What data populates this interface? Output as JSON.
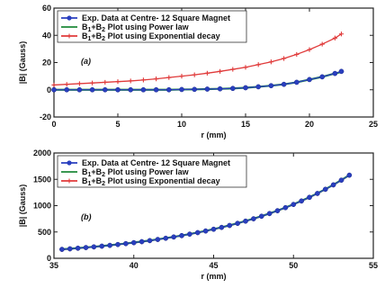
{
  "chart_data": [
    {
      "type": "line",
      "panel_label": "(a)",
      "xlabel": "r (mm)",
      "ylabel": "|B| (Gauss)",
      "xlim": [
        0,
        25
      ],
      "ylim": [
        -20,
        60
      ],
      "xticks": [
        "0",
        "5",
        "10",
        "15",
        "20",
        "25"
      ],
      "yticks": [
        "-20",
        "0",
        "20",
        "40",
        "60"
      ],
      "grid": false,
      "legend_position": "top-left",
      "x": [
        0,
        1,
        2,
        3,
        4,
        5,
        6,
        7,
        8,
        9,
        10,
        11,
        12,
        13,
        14,
        15,
        16,
        17,
        18,
        19,
        20,
        21,
        22,
        22.5
      ],
      "series": [
        {
          "name": "Exp. Data at Centre- 12 Square Magnet",
          "color": "#2a3fbf",
          "marker": "circle",
          "values": [
            0,
            0,
            0,
            0,
            0,
            0,
            0,
            0,
            0,
            0,
            0.2,
            0.3,
            0.5,
            0.7,
            1,
            1.5,
            2.2,
            3,
            4,
            5.5,
            7.5,
            9.5,
            12,
            13.5
          ]
        },
        {
          "name": "B1+B2 Plot using Power law",
          "color": "#1e8a3a",
          "marker": "line",
          "values": [
            0,
            0,
            0,
            0,
            0,
            0,
            0,
            0,
            0,
            0,
            0.2,
            0.3,
            0.5,
            0.7,
            1,
            1.5,
            2.2,
            3,
            4,
            5.5,
            7.5,
            9.5,
            12,
            13
          ]
        },
        {
          "name": "B1+B2 Plot using Exponential decay",
          "color": "#e03a3a",
          "marker": "plus",
          "values": [
            3.5,
            4,
            4.5,
            5,
            5.5,
            6,
            6.5,
            7.2,
            8,
            9,
            10,
            11,
            12.2,
            13.5,
            15,
            16.5,
            18.5,
            20.5,
            23,
            26,
            29.5,
            33.5,
            38,
            41
          ]
        }
      ]
    },
    {
      "type": "line",
      "panel_label": "(b)",
      "xlabel": "r (mm)",
      "ylabel": "|B| (Gauss)",
      "xlim": [
        35,
        55
      ],
      "ylim": [
        0,
        2000
      ],
      "xticks": [
        "35",
        "40",
        "45",
        "50",
        "55"
      ],
      "yticks": [
        "0",
        "500",
        "1000",
        "1500",
        "2000"
      ],
      "grid": false,
      "legend_position": "top-left",
      "x": [
        35.5,
        36,
        36.5,
        37,
        37.5,
        38,
        38.5,
        39,
        39.5,
        40,
        40.5,
        41,
        41.5,
        42,
        42.5,
        43,
        43.5,
        44,
        44.5,
        45,
        45.5,
        46,
        46.5,
        47,
        47.5,
        48,
        48.5,
        49,
        49.5,
        50,
        50.5,
        51,
        51.5,
        52,
        52.5,
        53,
        53.5
      ],
      "series": [
        {
          "name": "Exp. Data at Centre- 12 Square Magnet",
          "color": "#2a3fbf",
          "marker": "circle",
          "values": [
            170,
            180,
            192,
            204,
            217,
            231,
            246,
            262,
            279,
            297,
            316,
            336,
            358,
            381,
            405,
            431,
            459,
            488,
            519,
            552,
            587,
            624,
            664,
            706,
            751,
            799,
            850,
            904,
            962,
            1023,
            1089,
            1158,
            1232,
            1311,
            1395,
            1484,
            1579
          ]
        },
        {
          "name": "B1+B2 Plot using Power law",
          "color": "#1e8a3a",
          "marker": "line",
          "values": [
            172,
            182,
            194,
            206,
            219,
            233,
            248,
            264,
            281,
            299,
            318,
            338,
            360,
            383,
            407,
            433,
            461,
            490,
            521,
            554,
            589,
            626,
            666,
            708,
            753,
            801,
            852,
            906,
            964,
            1025,
            1091,
            1160,
            1234,
            1313,
            1397,
            1486,
            1581
          ]
        },
        {
          "name": "B1+B2 Plot using Exponential decay",
          "color": "#e03a3a",
          "marker": "plus",
          "values": [
            165,
            176,
            188,
            200,
            213,
            227,
            242,
            258,
            275,
            293,
            312,
            332,
            354,
            377,
            401,
            427,
            455,
            484,
            515,
            548,
            583,
            620,
            660,
            702,
            747,
            795,
            846,
            900,
            958,
            1019,
            1085,
            1154,
            1228,
            1307,
            1391,
            1480,
            1575
          ]
        }
      ]
    }
  ]
}
